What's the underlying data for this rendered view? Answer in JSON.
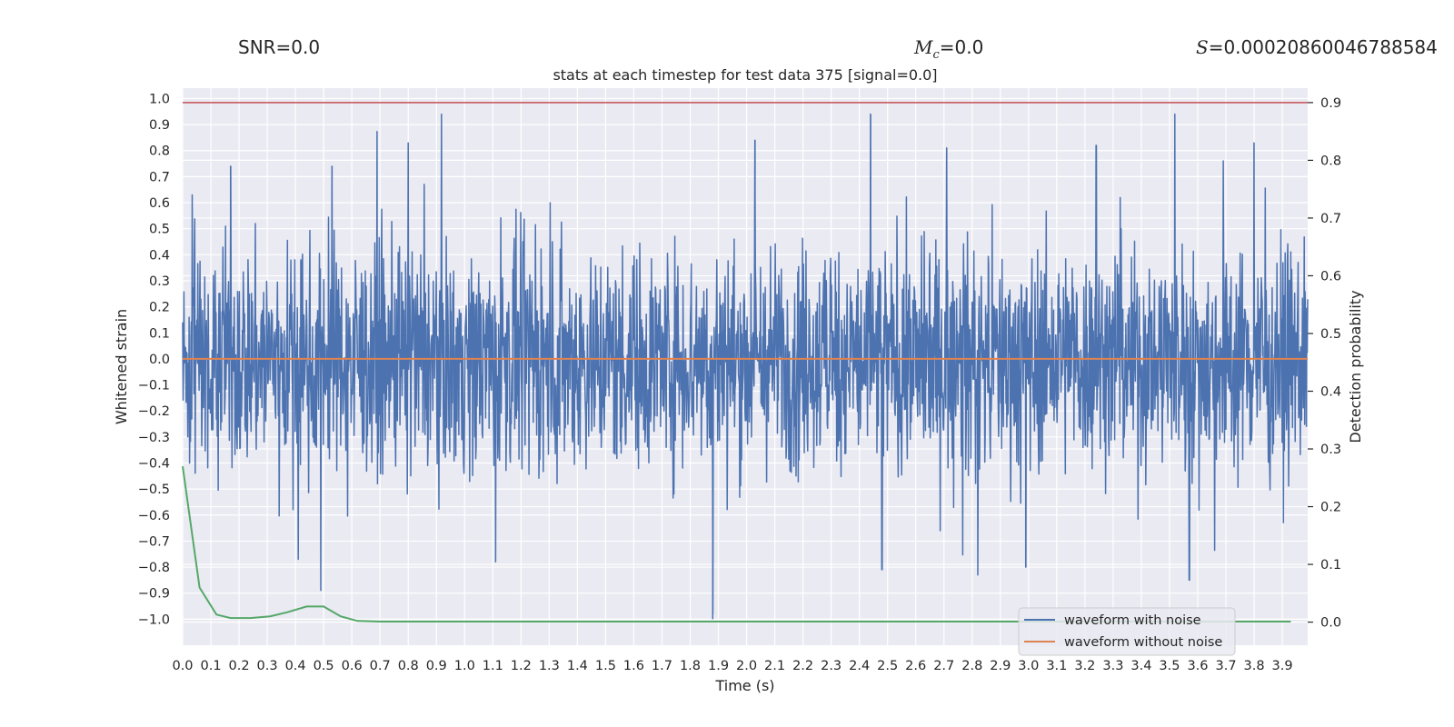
{
  "header_stats": {
    "snr_label": "SNR=0.0",
    "mc_symbol": "M",
    "mc_subscript": "c",
    "mc_value": "=0.0",
    "s_symbol": "S",
    "s_value": "=0.00020860046788584"
  },
  "colors": {
    "background": "#eaeaf2",
    "grid": "#ffffff",
    "noisy": "#4c72b0",
    "clean": "#dd8452",
    "probability": "#55a868",
    "threshold": "#c44e52"
  },
  "chart_data": {
    "type": "line",
    "title": "stats at each timestep for test data 375 [signal=0.0]",
    "xlabel": "Time (s)",
    "ylabel": "Whitened strain",
    "y2label": "Detection probability",
    "xlim": [
      0.0,
      3.99
    ],
    "ylim": [
      -1.1,
      1.04
    ],
    "y2lim": [
      -0.04,
      0.925
    ],
    "x_ticks": [
      "0.0",
      "0.1",
      "0.2",
      "0.3",
      "0.4",
      "0.5",
      "0.6",
      "0.7",
      "0.8",
      "0.9",
      "1.0",
      "1.1",
      "1.2",
      "1.3",
      "1.4",
      "1.5",
      "1.6",
      "1.7",
      "1.8",
      "1.9",
      "2.0",
      "2.1",
      "2.2",
      "2.3",
      "2.4",
      "2.5",
      "2.6",
      "2.7",
      "2.8",
      "2.9",
      "3.0",
      "3.1",
      "3.2",
      "3.3",
      "3.4",
      "3.5",
      "3.6",
      "3.7",
      "3.8",
      "3.9"
    ],
    "y_ticks": [
      "1.0",
      "0.9",
      "0.8",
      "0.7",
      "0.6",
      "0.5",
      "0.4",
      "0.3",
      "0.2",
      "0.1",
      "0.0",
      "-0.1",
      "-0.2",
      "-0.3",
      "-0.4",
      "-0.5",
      "-0.6",
      "-0.7",
      "-0.8",
      "-0.9",
      "-1.0"
    ],
    "y2_ticks": [
      "0.9",
      "0.8",
      "0.7",
      "0.6",
      "0.5",
      "0.4",
      "0.3",
      "0.2",
      "0.1",
      "0.0"
    ],
    "grid": true,
    "legend_position": "bottom-right",
    "series": [
      {
        "name": "waveform with noise",
        "axis": "left",
        "sampling": "dense noise trace, approx. 4096 samples over 0-4 s",
        "notable_peaks": [
          {
            "x": 0.8,
            "y": 0.83
          },
          {
            "x": 2.03,
            "y": 0.84
          },
          {
            "x": 2.44,
            "y": 0.94
          },
          {
            "x": 2.71,
            "y": 0.81
          },
          {
            "x": 3.24,
            "y": 0.82
          },
          {
            "x": 3.8,
            "y": 0.83
          },
          {
            "x": 0.53,
            "y": 0.74
          },
          {
            "x": 0.17,
            "y": 0.74
          }
        ],
        "notable_troughs": [
          {
            "x": 1.88,
            "y": -1.0
          },
          {
            "x": 0.49,
            "y": -0.89
          },
          {
            "x": 3.57,
            "y": -0.85
          },
          {
            "x": 2.82,
            "y": -0.83
          },
          {
            "x": 2.48,
            "y": -0.81
          },
          {
            "x": 2.99,
            "y": -0.8
          },
          {
            "x": 1.11,
            "y": -0.78
          },
          {
            "x": 0.41,
            "y": -0.77
          }
        ]
      },
      {
        "name": "waveform without noise",
        "axis": "left",
        "x": [
          0.0,
          3.99
        ],
        "y": [
          0.0,
          0.0
        ]
      },
      {
        "name": "",
        "axis": "right",
        "x": [
          0.0,
          0.06,
          0.12,
          0.17,
          0.24,
          0.31,
          0.37,
          0.44,
          0.5,
          0.56,
          0.62,
          0.7,
          1.0,
          1.5,
          2.0,
          2.5,
          3.0,
          3.5,
          3.93
        ],
        "y": [
          0.27,
          0.06,
          0.013,
          0.007,
          0.007,
          0.01,
          0.017,
          0.027,
          0.027,
          0.01,
          0.002,
          0.001,
          0.001,
          0.001,
          0.001,
          0.001,
          0.001,
          0.001,
          0.001
        ]
      },
      {
        "name": "",
        "axis": "right",
        "x": [
          0.0,
          3.99
        ],
        "y": [
          0.9,
          0.9
        ]
      }
    ]
  }
}
